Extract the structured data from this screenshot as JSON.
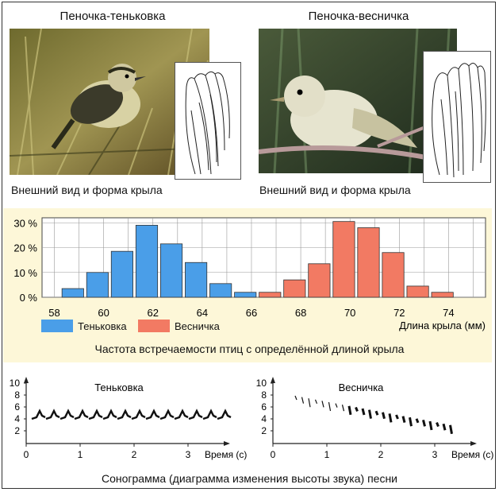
{
  "birds": [
    {
      "title": "Пеночка-теньковка",
      "caption": "Внешний вид и форма крыла"
    },
    {
      "title": "Пеночка-весничка",
      "caption": "Внешний вид и форма крыла"
    }
  ],
  "chart_data": {
    "type": "bar",
    "title": "Частота встречаемости птиц с определённой длиной крыла",
    "xlabel": "Длина крыла (мм)",
    "x_ticks": [
      "58",
      "60",
      "62",
      "64",
      "66",
      "68",
      "70",
      "72",
      "74"
    ],
    "y_ticks": [
      "0 %",
      "10 %",
      "20 %",
      "30 %"
    ],
    "ylim": [
      0,
      32
    ],
    "grid": true,
    "legend_position": "bottom-left",
    "series": [
      {
        "name": "Теньковка",
        "color": "#4a9ee8",
        "x": [
          58.75,
          59.75,
          60.75,
          61.75,
          62.75,
          63.75,
          64.75,
          65.75
        ],
        "values": [
          3.5,
          10,
          18.5,
          29,
          21.5,
          14,
          5.5,
          2
        ]
      },
      {
        "name": "Весничка",
        "color": "#f27a63",
        "x": [
          66.75,
          67.75,
          68.75,
          69.75,
          70.75,
          71.75,
          72.75,
          73.75
        ],
        "values": [
          2,
          7,
          13.5,
          30.5,
          28,
          18,
          4.5,
          2
        ]
      }
    ]
  },
  "sonograms": [
    {
      "name": "Теньковка",
      "y_ticks": [
        "2",
        "4",
        "6",
        "8",
        "10"
      ],
      "x_ticks": [
        "0",
        "1",
        "2",
        "3"
      ],
      "xlabel": "Время (с)"
    },
    {
      "name": "Весничка",
      "y_ticks": [
        "2",
        "4",
        "6",
        "8",
        "10"
      ],
      "x_ticks": [
        "0",
        "1",
        "2",
        "3"
      ],
      "xlabel": "Время (с)"
    }
  ],
  "sonogram_caption": "Сонограмма (диаграмма изменения высоты звука) песни"
}
